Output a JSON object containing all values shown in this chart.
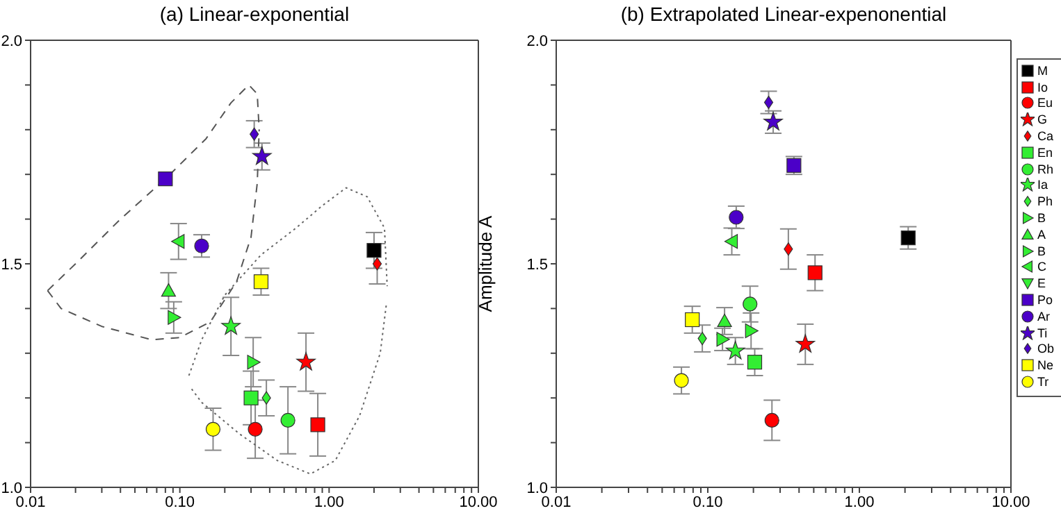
{
  "chart_data": [
    {
      "type": "scatter",
      "title": "(a) Linear-exponential",
      "log": "x",
      "grid": false,
      "legend": false,
      "xlim": [
        0.01,
        10
      ],
      "xticks": [
        {
          "value": 0.01,
          "label": "0.01"
        },
        {
          "value": 0.02,
          "label": null
        },
        {
          "value": 0.03,
          "label": null
        },
        {
          "value": 0.04,
          "label": null
        },
        {
          "value": 0.05,
          "label": null
        },
        {
          "value": 0.06,
          "label": null
        },
        {
          "value": 0.07,
          "label": null
        },
        {
          "value": 0.08,
          "label": null
        },
        {
          "value": 0.09,
          "label": null
        },
        {
          "value": 0.1,
          "label": "0.10"
        },
        {
          "value": 0.2,
          "label": null
        },
        {
          "value": 0.3,
          "label": null
        },
        {
          "value": 0.4,
          "label": null
        },
        {
          "value": 0.5,
          "label": null
        },
        {
          "value": 0.6,
          "label": null
        },
        {
          "value": 0.7,
          "label": null
        },
        {
          "value": 0.8,
          "label": null
        },
        {
          "value": 0.9,
          "label": null
        },
        {
          "value": 1,
          "label": "1.00"
        },
        {
          "value": 2,
          "label": null
        },
        {
          "value": 3,
          "label": null
        },
        {
          "value": 4,
          "label": null
        },
        {
          "value": 5,
          "label": null
        },
        {
          "value": 6,
          "label": null
        },
        {
          "value": 7,
          "label": null
        },
        {
          "value": 8,
          "label": null
        },
        {
          "value": 9,
          "label": null
        },
        {
          "value": 10,
          "label": "10.00"
        }
      ],
      "ylim": [
        1.0,
        2.0
      ],
      "yticks": [
        {
          "value": 1.0,
          "label": "1.0"
        },
        {
          "value": 1.1,
          "label": null
        },
        {
          "value": 1.2,
          "label": null
        },
        {
          "value": 1.3,
          "label": null
        },
        {
          "value": 1.4,
          "label": null
        },
        {
          "value": 1.5,
          "label": "1.5"
        },
        {
          "value": 1.6,
          "label": null
        },
        {
          "value": 1.7,
          "label": null
        },
        {
          "value": 1.8,
          "label": null
        },
        {
          "value": 1.9,
          "label": null
        },
        {
          "value": 2.0,
          "label": "2.0"
        }
      ],
      "series": [
        {
          "color": "#000000",
          "marker": "square",
          "x": [
            2.0
          ],
          "values": [
            1.53
          ],
          "errors": [
            0.04
          ]
        },
        {
          "color": "#ff0000",
          "marker": "square",
          "x": [
            0.84
          ],
          "values": [
            1.14
          ],
          "errors": [
            0.07
          ]
        },
        {
          "color": "#ff0000",
          "marker": "circle",
          "x": [
            0.32
          ],
          "values": [
            1.13
          ],
          "errors": [
            0.065
          ]
        },
        {
          "color": "#ff0000",
          "marker": "star",
          "x": [
            0.7
          ],
          "values": [
            1.28
          ],
          "errors": [
            0.065
          ]
        },
        {
          "color": "#ff0000",
          "marker": "diamond",
          "x": [
            2.1
          ],
          "values": [
            1.5
          ],
          "errors": [
            0.045
          ]
        },
        {
          "color": "#33ee33",
          "marker": "square",
          "x": [
            0.3
          ],
          "values": [
            1.2
          ],
          "errors": [
            0.06
          ]
        },
        {
          "color": "#33ee33",
          "marker": "circle",
          "x": [
            0.53
          ],
          "values": [
            1.15
          ],
          "errors": [
            0.075
          ]
        },
        {
          "color": "#33ee33",
          "marker": "star",
          "x": [
            0.22
          ],
          "values": [
            1.36
          ],
          "errors": [
            0.065
          ]
        },
        {
          "color": "#33ee33",
          "marker": "diamond",
          "x": [
            0.38
          ],
          "values": [
            1.2
          ],
          "errors": [
            0.04
          ]
        },
        {
          "color": "#33ee33",
          "marker": "triangle-right",
          "x": [
            0.31
          ],
          "values": [
            1.28
          ],
          "errors": [
            0.055
          ]
        },
        {
          "color": "#33ee33",
          "marker": "triangle",
          "x": [
            0.084
          ],
          "values": [
            1.44
          ],
          "errors": [
            0.04
          ]
        },
        {
          "color": "#33ee33",
          "marker": "triangle-right",
          "x": [
            0.091
          ],
          "values": [
            1.38
          ],
          "errors": [
            0.035
          ]
        },
        {
          "color": "#33ee33",
          "marker": "triangle-left",
          "x": [
            0.098
          ],
          "values": [
            1.55
          ],
          "errors": [
            0.04
          ]
        },
        {
          "color": "#4b00c8",
          "marker": "square",
          "x": [
            0.08
          ],
          "values": [
            1.69
          ],
          "errors": [
            null
          ]
        },
        {
          "color": "#4b00c8",
          "marker": "circle",
          "x": [
            0.14
          ],
          "values": [
            1.54
          ],
          "errors": [
            0.025
          ]
        },
        {
          "color": "#4b00c8",
          "marker": "star",
          "x": [
            0.355
          ],
          "values": [
            1.74
          ],
          "errors": [
            0.03
          ]
        },
        {
          "color": "#4b00c8",
          "marker": "diamond",
          "x": [
            0.315
          ],
          "values": [
            1.79
          ],
          "errors": [
            0.03
          ]
        },
        {
          "color": "#ffff00",
          "marker": "square",
          "x": [
            0.35
          ],
          "values": [
            1.46
          ],
          "errors": [
            0.03
          ]
        },
        {
          "color": "#ffff00",
          "marker": "circle",
          "x": [
            0.167
          ],
          "values": [
            1.13
          ],
          "errors": [
            0.047
          ]
        },
        {
          "type": "line",
          "color": "#555555",
          "line_style": "dashed",
          "marker": "none",
          "x": [
            0.013,
            0.02,
            0.04,
            0.08,
            0.15,
            0.22,
            0.29,
            0.33,
            0.34
          ],
          "values": [
            1.44,
            1.5,
            1.6,
            1.69,
            1.78,
            1.86,
            1.9,
            1.88,
            1.8
          ]
        },
        {
          "type": "line",
          "color": "#555555",
          "line_style": "dashed",
          "marker": "none",
          "x": [
            0.013,
            0.016,
            0.03,
            0.065,
            0.1,
            0.16,
            0.24,
            0.3,
            0.33,
            0.34
          ],
          "values": [
            1.44,
            1.4,
            1.36,
            1.33,
            1.335,
            1.37,
            1.46,
            1.56,
            1.68,
            1.8
          ]
        },
        {
          "type": "line",
          "color": "#666666",
          "line_style": "dotted",
          "marker": "none",
          "x": [
            0.115,
            0.14,
            0.2,
            0.35,
            0.6,
            0.9,
            1.3,
            1.8,
            2.35,
            2.45
          ],
          "values": [
            1.25,
            1.33,
            1.43,
            1.52,
            1.58,
            1.63,
            1.67,
            1.65,
            1.58,
            1.45
          ]
        },
        {
          "type": "line",
          "color": "#666666",
          "line_style": "dotted",
          "marker": "none",
          "x": [
            0.12,
            0.14,
            0.25,
            0.45,
            0.75,
            1.1,
            1.6,
            2.2,
            2.42
          ],
          "values": [
            1.22,
            1.19,
            1.12,
            1.06,
            1.03,
            1.06,
            1.16,
            1.3,
            1.41
          ]
        }
      ]
    },
    {
      "type": "scatter",
      "title": "(b) Extrapolated Linear-expenonential",
      "ylabel": "Amplitude A",
      "log": "x",
      "grid": false,
      "legend": "right",
      "xlim": [
        0.01,
        10
      ],
      "xticks": [
        {
          "value": 0.01,
          "label": "0.01"
        },
        {
          "value": 0.02,
          "label": null
        },
        {
          "value": 0.03,
          "label": null
        },
        {
          "value": 0.04,
          "label": null
        },
        {
          "value": 0.05,
          "label": null
        },
        {
          "value": 0.06,
          "label": null
        },
        {
          "value": 0.07,
          "label": null
        },
        {
          "value": 0.08,
          "label": null
        },
        {
          "value": 0.09,
          "label": null
        },
        {
          "value": 0.1,
          "label": "0.10"
        },
        {
          "value": 0.2,
          "label": null
        },
        {
          "value": 0.3,
          "label": null
        },
        {
          "value": 0.4,
          "label": null
        },
        {
          "value": 0.5,
          "label": null
        },
        {
          "value": 0.6,
          "label": null
        },
        {
          "value": 0.7,
          "label": null
        },
        {
          "value": 0.8,
          "label": null
        },
        {
          "value": 0.9,
          "label": null
        },
        {
          "value": 1,
          "label": "1.00"
        },
        {
          "value": 2,
          "label": null
        },
        {
          "value": 3,
          "label": null
        },
        {
          "value": 4,
          "label": null
        },
        {
          "value": 5,
          "label": null
        },
        {
          "value": 6,
          "label": null
        },
        {
          "value": 7,
          "label": null
        },
        {
          "value": 8,
          "label": null
        },
        {
          "value": 9,
          "label": null
        },
        {
          "value": 10,
          "label": "10.00"
        }
      ],
      "ylim": [
        1.0,
        2.0
      ],
      "yticks": [
        {
          "value": 1.0,
          "label": "1.0"
        },
        {
          "value": 1.1,
          "label": null
        },
        {
          "value": 1.2,
          "label": null
        },
        {
          "value": 1.3,
          "label": null
        },
        {
          "value": 1.4,
          "label": null
        },
        {
          "value": 1.5,
          "label": "1.5"
        },
        {
          "value": 1.6,
          "label": null
        },
        {
          "value": 1.7,
          "label": null
        },
        {
          "value": 1.8,
          "label": null
        },
        {
          "value": 1.9,
          "label": null
        },
        {
          "value": 2.0,
          "label": "2.0"
        }
      ],
      "series": [
        {
          "name": "M",
          "color": "#000000",
          "marker": "square",
          "x": [
            2.1
          ],
          "values": [
            1.558
          ],
          "errors": [
            0.025
          ]
        },
        {
          "name": "Io",
          "color": "#ff0000",
          "marker": "square",
          "x": [
            0.51
          ],
          "values": [
            1.48
          ],
          "errors": [
            0.04
          ]
        },
        {
          "name": "Eu",
          "color": "#ff0000",
          "marker": "circle",
          "x": [
            0.265
          ],
          "values": [
            1.15
          ],
          "errors": [
            0.045
          ]
        },
        {
          "name": "G",
          "color": "#ff0000",
          "marker": "star",
          "x": [
            0.44
          ],
          "values": [
            1.32
          ],
          "errors": [
            0.045
          ]
        },
        {
          "name": "Ca",
          "color": "#ff0000",
          "marker": "diamond",
          "x": [
            0.34
          ],
          "values": [
            1.533
          ],
          "errors": [
            0.045
          ]
        },
        {
          "name": "En",
          "color": "#33ee33",
          "marker": "square",
          "x": [
            0.204
          ],
          "values": [
            1.28
          ],
          "errors": [
            0.03
          ]
        },
        {
          "name": "Rh",
          "color": "#33ee33",
          "marker": "circle",
          "x": [
            0.19
          ],
          "values": [
            1.41
          ],
          "errors": [
            0.04
          ]
        },
        {
          "name": "Ia",
          "color": "#33ee33",
          "marker": "star",
          "x": [
            0.152
          ],
          "values": [
            1.305
          ],
          "errors": [
            0.03
          ]
        },
        {
          "name": "Ph",
          "color": "#33ee33",
          "marker": "diamond",
          "x": [
            0.092
          ],
          "values": [
            1.333
          ],
          "errors": [
            0.03
          ]
        },
        {
          "name": "B",
          "color": "#33ee33",
          "marker": "triangle-right",
          "x": [
            0.193
          ],
          "values": [
            1.35
          ],
          "errors": [
            0.04
          ]
        },
        {
          "name": "A",
          "color": "#33ee33",
          "marker": "triangle",
          "x": [
            0.129
          ],
          "values": [
            1.372
          ],
          "errors": [
            0.03
          ]
        },
        {
          "name": "B",
          "color": "#33ee33",
          "marker": "triangle-right",
          "x": [
            0.125
          ],
          "values": [
            1.331
          ],
          "errors": [
            0.025
          ]
        },
        {
          "name": "C",
          "color": "#33ee33",
          "marker": "triangle-left",
          "x": [
            0.144
          ],
          "values": [
            1.55
          ],
          "errors": [
            0.03
          ]
        },
        {
          "name": "E",
          "color": "#33ee33",
          "marker": "triangle-down",
          "x": [
            null
          ],
          "values": [
            null
          ],
          "errors": [
            null
          ]
        },
        {
          "name": "Po",
          "color": "#4b00c8",
          "marker": "square",
          "x": [
            0.37
          ],
          "values": [
            1.72
          ],
          "errors": [
            0.02
          ]
        },
        {
          "name": "Ar",
          "color": "#4b00c8",
          "marker": "circle",
          "x": [
            0.154
          ],
          "values": [
            1.604
          ],
          "errors": [
            0.025
          ]
        },
        {
          "name": "Ti",
          "color": "#4b00c8",
          "marker": "star",
          "x": [
            0.27
          ],
          "values": [
            1.817
          ],
          "errors": [
            0.025
          ]
        },
        {
          "name": "Ob",
          "color": "#4b00c8",
          "marker": "diamond",
          "x": [
            0.252
          ],
          "values": [
            1.861
          ],
          "errors": [
            0.025
          ]
        },
        {
          "name": "Ne",
          "color": "#ffff00",
          "marker": "square",
          "x": [
            0.079
          ],
          "values": [
            1.375
          ],
          "errors": [
            0.03
          ]
        },
        {
          "name": "Tr",
          "color": "#ffff00",
          "marker": "circle",
          "x": [
            0.067
          ],
          "values": [
            1.239
          ],
          "errors": [
            0.03
          ]
        }
      ]
    }
  ]
}
